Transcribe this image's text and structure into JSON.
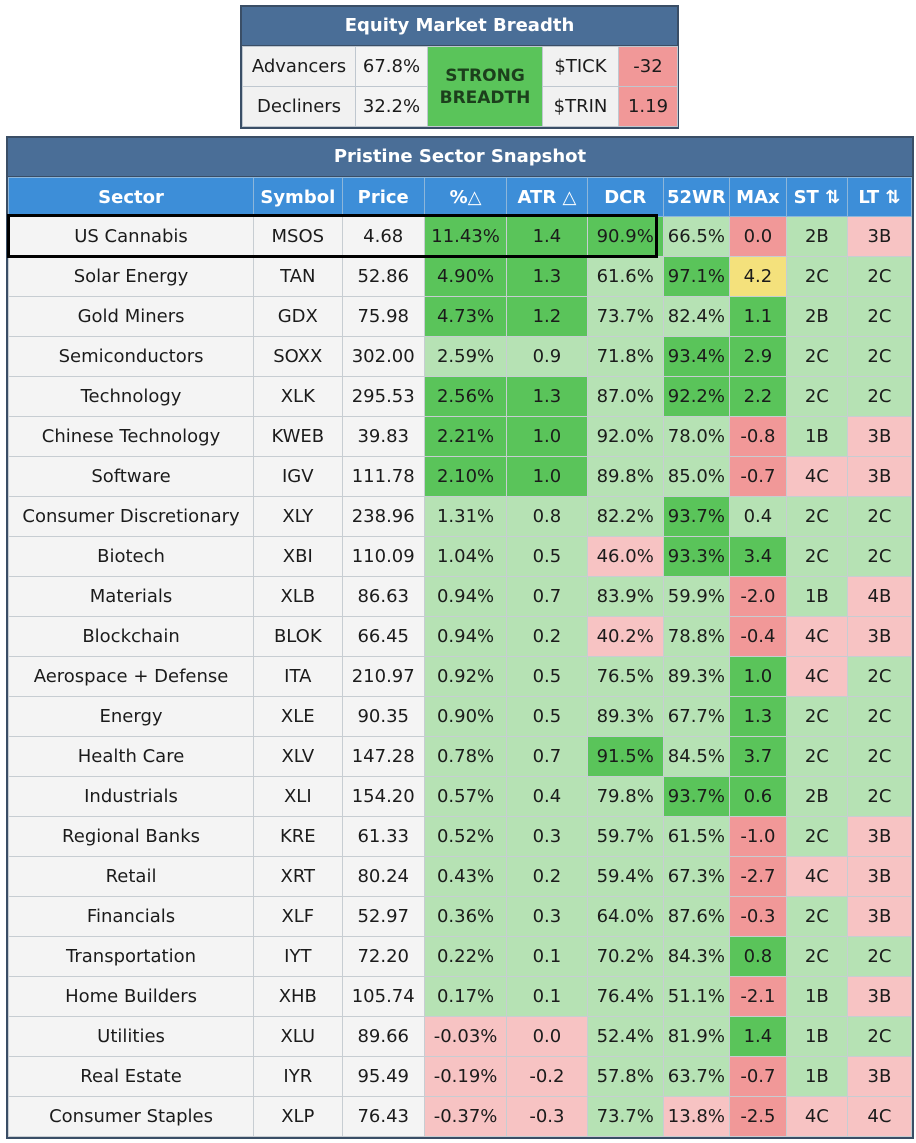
{
  "breadth": {
    "title": "Equity Market Breadth",
    "advancers_label": "Advancers",
    "advancers_value": "67.8%",
    "decliners_label": "Decliners",
    "decliners_value": "32.2%",
    "signal": "STRONG BREADTH",
    "tick_label": "$TICK",
    "tick_value": "-32",
    "trin_label": "$TRIN",
    "trin_value": "1.19"
  },
  "snapshot": {
    "title": "Pristine Sector Snapshot",
    "headers": [
      "Sector",
      "Symbol",
      "Price",
      "%△",
      "ATR △",
      "DCR",
      "52WR",
      "MAx",
      "ST ⇅",
      "LT ⇅"
    ],
    "rows": [
      {
        "sector": "US Cannabis",
        "symbol": "MSOS",
        "price": "4.68",
        "pct": "11.43%",
        "atr": "1.4",
        "dcr": "90.9%",
        "wr": "66.5%",
        "max": "0.0",
        "st": "2B",
        "lt": "3B"
      },
      {
        "sector": "Solar Energy",
        "symbol": "TAN",
        "price": "52.86",
        "pct": "4.90%",
        "atr": "1.3",
        "dcr": "61.6%",
        "wr": "97.1%",
        "max": "4.2",
        "st": "2C",
        "lt": "2C"
      },
      {
        "sector": "Gold Miners",
        "symbol": "GDX",
        "price": "75.98",
        "pct": "4.73%",
        "atr": "1.2",
        "dcr": "73.7%",
        "wr": "82.4%",
        "max": "1.1",
        "st": "2B",
        "lt": "2C"
      },
      {
        "sector": "Semiconductors",
        "symbol": "SOXX",
        "price": "302.00",
        "pct": "2.59%",
        "atr": "0.9",
        "dcr": "71.8%",
        "wr": "93.4%",
        "max": "2.9",
        "st": "2C",
        "lt": "2C"
      },
      {
        "sector": "Technology",
        "symbol": "XLK",
        "price": "295.53",
        "pct": "2.56%",
        "atr": "1.3",
        "dcr": "87.0%",
        "wr": "92.2%",
        "max": "2.2",
        "st": "2C",
        "lt": "2C"
      },
      {
        "sector": "Chinese Technology",
        "symbol": "KWEB",
        "price": "39.83",
        "pct": "2.21%",
        "atr": "1.0",
        "dcr": "92.0%",
        "wr": "78.0%",
        "max": "-0.8",
        "st": "1B",
        "lt": "3B"
      },
      {
        "sector": "Software",
        "symbol": "IGV",
        "price": "111.78",
        "pct": "2.10%",
        "atr": "1.0",
        "dcr": "89.8%",
        "wr": "85.0%",
        "max": "-0.7",
        "st": "4C",
        "lt": "3B"
      },
      {
        "sector": "Consumer Discretionary",
        "symbol": "XLY",
        "price": "238.96",
        "pct": "1.31%",
        "atr": "0.8",
        "dcr": "82.2%",
        "wr": "93.7%",
        "max": "0.4",
        "st": "2C",
        "lt": "2C"
      },
      {
        "sector": "Biotech",
        "symbol": "XBI",
        "price": "110.09",
        "pct": "1.04%",
        "atr": "0.5",
        "dcr": "46.0%",
        "wr": "93.3%",
        "max": "3.4",
        "st": "2C",
        "lt": "2C"
      },
      {
        "sector": "Materials",
        "symbol": "XLB",
        "price": "86.63",
        "pct": "0.94%",
        "atr": "0.7",
        "dcr": "83.9%",
        "wr": "59.9%",
        "max": "-2.0",
        "st": "1B",
        "lt": "4B"
      },
      {
        "sector": "Blockchain",
        "symbol": "BLOK",
        "price": "66.45",
        "pct": "0.94%",
        "atr": "0.2",
        "dcr": "40.2%",
        "wr": "78.8%",
        "max": "-0.4",
        "st": "4C",
        "lt": "3B"
      },
      {
        "sector": "Aerospace + Defense",
        "symbol": "ITA",
        "price": "210.97",
        "pct": "0.92%",
        "atr": "0.5",
        "dcr": "76.5%",
        "wr": "89.3%",
        "max": "1.0",
        "st": "4C",
        "lt": "2C"
      },
      {
        "sector": "Energy",
        "symbol": "XLE",
        "price": "90.35",
        "pct": "0.90%",
        "atr": "0.5",
        "dcr": "89.3%",
        "wr": "67.7%",
        "max": "1.3",
        "st": "2C",
        "lt": "2C"
      },
      {
        "sector": "Health Care",
        "symbol": "XLV",
        "price": "147.28",
        "pct": "0.78%",
        "atr": "0.7",
        "dcr": "91.5%",
        "wr": "84.5%",
        "max": "3.7",
        "st": "2C",
        "lt": "2C"
      },
      {
        "sector": "Industrials",
        "symbol": "XLI",
        "price": "154.20",
        "pct": "0.57%",
        "atr": "0.4",
        "dcr": "79.8%",
        "wr": "93.7%",
        "max": "0.6",
        "st": "2B",
        "lt": "2C"
      },
      {
        "sector": "Regional Banks",
        "symbol": "KRE",
        "price": "61.33",
        "pct": "0.52%",
        "atr": "0.3",
        "dcr": "59.7%",
        "wr": "61.5%",
        "max": "-1.0",
        "st": "2C",
        "lt": "3B"
      },
      {
        "sector": "Retail",
        "symbol": "XRT",
        "price": "80.24",
        "pct": "0.43%",
        "atr": "0.2",
        "dcr": "59.4%",
        "wr": "67.3%",
        "max": "-2.7",
        "st": "4C",
        "lt": "3B"
      },
      {
        "sector": "Financials",
        "symbol": "XLF",
        "price": "52.97",
        "pct": "0.36%",
        "atr": "0.3",
        "dcr": "64.0%",
        "wr": "87.6%",
        "max": "-0.3",
        "st": "2C",
        "lt": "3B"
      },
      {
        "sector": "Transportation",
        "symbol": "IYT",
        "price": "72.20",
        "pct": "0.22%",
        "atr": "0.1",
        "dcr": "70.2%",
        "wr": "84.3%",
        "max": "0.8",
        "st": "2C",
        "lt": "2C"
      },
      {
        "sector": "Home Builders",
        "symbol": "XHB",
        "price": "105.74",
        "pct": "0.17%",
        "atr": "0.1",
        "dcr": "76.4%",
        "wr": "51.1%",
        "max": "-2.1",
        "st": "1B",
        "lt": "3B"
      },
      {
        "sector": "Utilities",
        "symbol": "XLU",
        "price": "89.66",
        "pct": "-0.03%",
        "atr": "0.0",
        "dcr": "52.4%",
        "wr": "81.9%",
        "max": "1.4",
        "st": "1B",
        "lt": "2C"
      },
      {
        "sector": "Real Estate",
        "symbol": "IYR",
        "price": "95.49",
        "pct": "-0.19%",
        "atr": "-0.2",
        "dcr": "57.8%",
        "wr": "63.7%",
        "max": "-0.7",
        "st": "1B",
        "lt": "3B"
      },
      {
        "sector": "Consumer Staples",
        "symbol": "XLP",
        "price": "76.43",
        "pct": "-0.37%",
        "atr": "-0.3",
        "dcr": "73.7%",
        "wr": "13.8%",
        "max": "-2.5",
        "st": "4C",
        "lt": "4C"
      }
    ]
  },
  "colors": {
    "header_dark": "#4a6e97",
    "header_blue": "#3d8ed8",
    "green_light": "#b6e2b4",
    "green_strong": "#5ac45a",
    "red_light": "#f7c3c3",
    "red_strong": "#f19898",
    "yellow": "#f4e17c",
    "neutral": "#f4f4f4"
  }
}
